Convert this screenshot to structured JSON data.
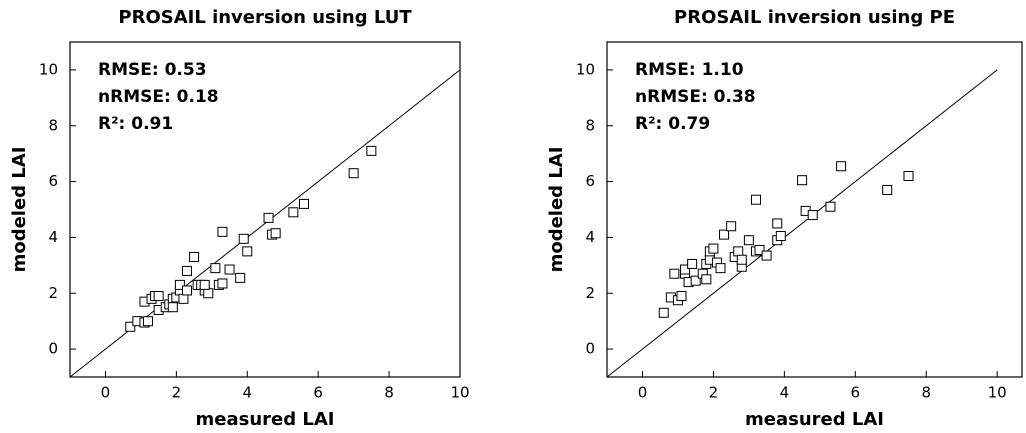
{
  "chart_data": [
    {
      "type": "scatter",
      "title": "PROSAIL inversion using LUT",
      "xlabel": "measured LAI",
      "ylabel": "modeled LAI",
      "annotations": [
        "RMSE: 0.53",
        "nRMSE: 0.18",
        "R²: 0.91"
      ],
      "color": "#000000",
      "x": [
        0.7,
        0.9,
        1.1,
        1.2,
        1.1,
        1.3,
        1.4,
        1.5,
        1.5,
        1.7,
        1.8,
        1.9,
        1.9,
        2.0,
        2.1,
        2.1,
        2.2,
        2.3,
        2.3,
        2.5,
        2.6,
        2.7,
        2.8,
        2.9,
        2.8,
        3.1,
        3.2,
        3.3,
        3.3,
        3.5,
        3.8,
        3.9,
        4.0,
        4.6,
        4.7,
        4.8,
        5.3,
        5.6,
        7.0,
        7.5
      ],
      "y": [
        0.8,
        1.0,
        0.95,
        1.0,
        1.7,
        1.8,
        1.9,
        1.4,
        1.9,
        1.5,
        1.6,
        1.8,
        1.5,
        1.85,
        2.1,
        2.3,
        1.8,
        2.1,
        2.8,
        3.3,
        2.3,
        2.3,
        2.1,
        2.0,
        2.3,
        2.9,
        2.3,
        2.35,
        4.2,
        2.85,
        2.55,
        3.95,
        3.5,
        4.7,
        4.1,
        4.15,
        4.9,
        5.2,
        6.3,
        7.1
      ],
      "xlim": [
        -1,
        10
      ],
      "ylim": [
        -1,
        11
      ],
      "xticks": [
        0,
        2,
        4,
        6,
        8,
        10
      ],
      "yticks": [
        0,
        2,
        4,
        6,
        8,
        10
      ]
    },
    {
      "type": "scatter",
      "title": "PROSAIL inversion using PE",
      "xlabel": "measured LAI",
      "ylabel": "modeled LAI",
      "annotations": [
        "RMSE: 1.10",
        "nRMSE: 0.38",
        "R²: 0.79"
      ],
      "color": "#000000",
      "x": [
        0.6,
        0.8,
        0.9,
        1.0,
        1.1,
        1.2,
        1.2,
        1.3,
        1.4,
        1.5,
        1.7,
        1.8,
        1.8,
        1.9,
        1.9,
        2.0,
        2.1,
        2.2,
        2.3,
        2.5,
        2.6,
        2.7,
        2.8,
        2.8,
        3.0,
        3.2,
        3.2,
        3.3,
        3.5,
        3.8,
        3.8,
        3.9,
        4.5,
        4.6,
        4.8,
        5.3,
        5.6,
        6.9,
        7.5
      ],
      "y": [
        1.3,
        1.85,
        2.7,
        1.75,
        1.9,
        2.7,
        2.85,
        2.4,
        3.05,
        2.45,
        2.7,
        3.05,
        2.5,
        3.2,
        3.5,
        3.6,
        3.1,
        2.9,
        4.1,
        4.4,
        3.3,
        3.5,
        2.95,
        3.2,
        3.9,
        3.5,
        5.35,
        3.55,
        3.35,
        3.9,
        4.5,
        4.05,
        6.05,
        4.95,
        4.8,
        5.1,
        6.55,
        5.7,
        6.2
      ],
      "xlim": [
        -1,
        10.7
      ],
      "ylim": [
        -1,
        11
      ],
      "xticks": [
        0,
        2,
        4,
        6,
        8,
        10
      ],
      "yticks": [
        0,
        2,
        4,
        6,
        8,
        10
      ]
    }
  ]
}
